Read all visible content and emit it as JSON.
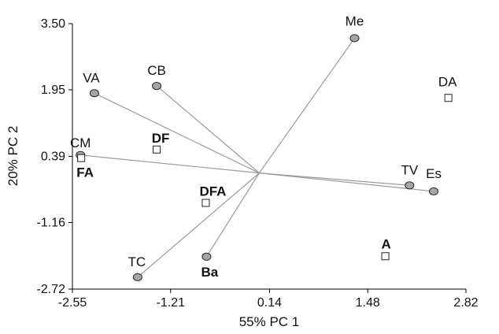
{
  "chart_data": {
    "type": "scatter",
    "title": "",
    "xlabel": "55% PC 1",
    "ylabel": "20% PC 2",
    "xlim": [
      -2.55,
      2.82
    ],
    "ylim": [
      -2.72,
      3.5
    ],
    "x_ticks": [
      "-2.55",
      "-1.21",
      "0.14",
      "1.48",
      "2.82"
    ],
    "y_ticks": [
      "3.50",
      "1.95",
      "0.39",
      "-1.16",
      "-2.72"
    ],
    "grid": false,
    "origin": [
      0.0,
      0.0
    ],
    "variables": [
      {
        "label": "Me",
        "x": 1.3,
        "y": 3.16
      },
      {
        "label": "VA",
        "x": -2.25,
        "y": 1.87
      },
      {
        "label": "CB",
        "x": -1.4,
        "y": 2.04
      },
      {
        "label": "CM",
        "x": -2.44,
        "y": 0.42
      },
      {
        "label": "TV",
        "x": 2.05,
        "y": -0.29
      },
      {
        "label": "Es",
        "x": 2.38,
        "y": -0.43
      },
      {
        "label": "Ba",
        "x": -0.72,
        "y": -1.96
      },
      {
        "label": "TC",
        "x": -1.66,
        "y": -2.44
      }
    ],
    "samples": [
      {
        "label": "DA",
        "x": 2.58,
        "y": 1.76
      },
      {
        "label": "DF",
        "x": -1.4,
        "y": 0.55
      },
      {
        "label": "FA",
        "x": -2.43,
        "y": 0.35
      },
      {
        "label": "DFA",
        "x": -0.73,
        "y": -0.7
      },
      {
        "label": "A",
        "x": 1.72,
        "y": -1.95
      }
    ]
  }
}
